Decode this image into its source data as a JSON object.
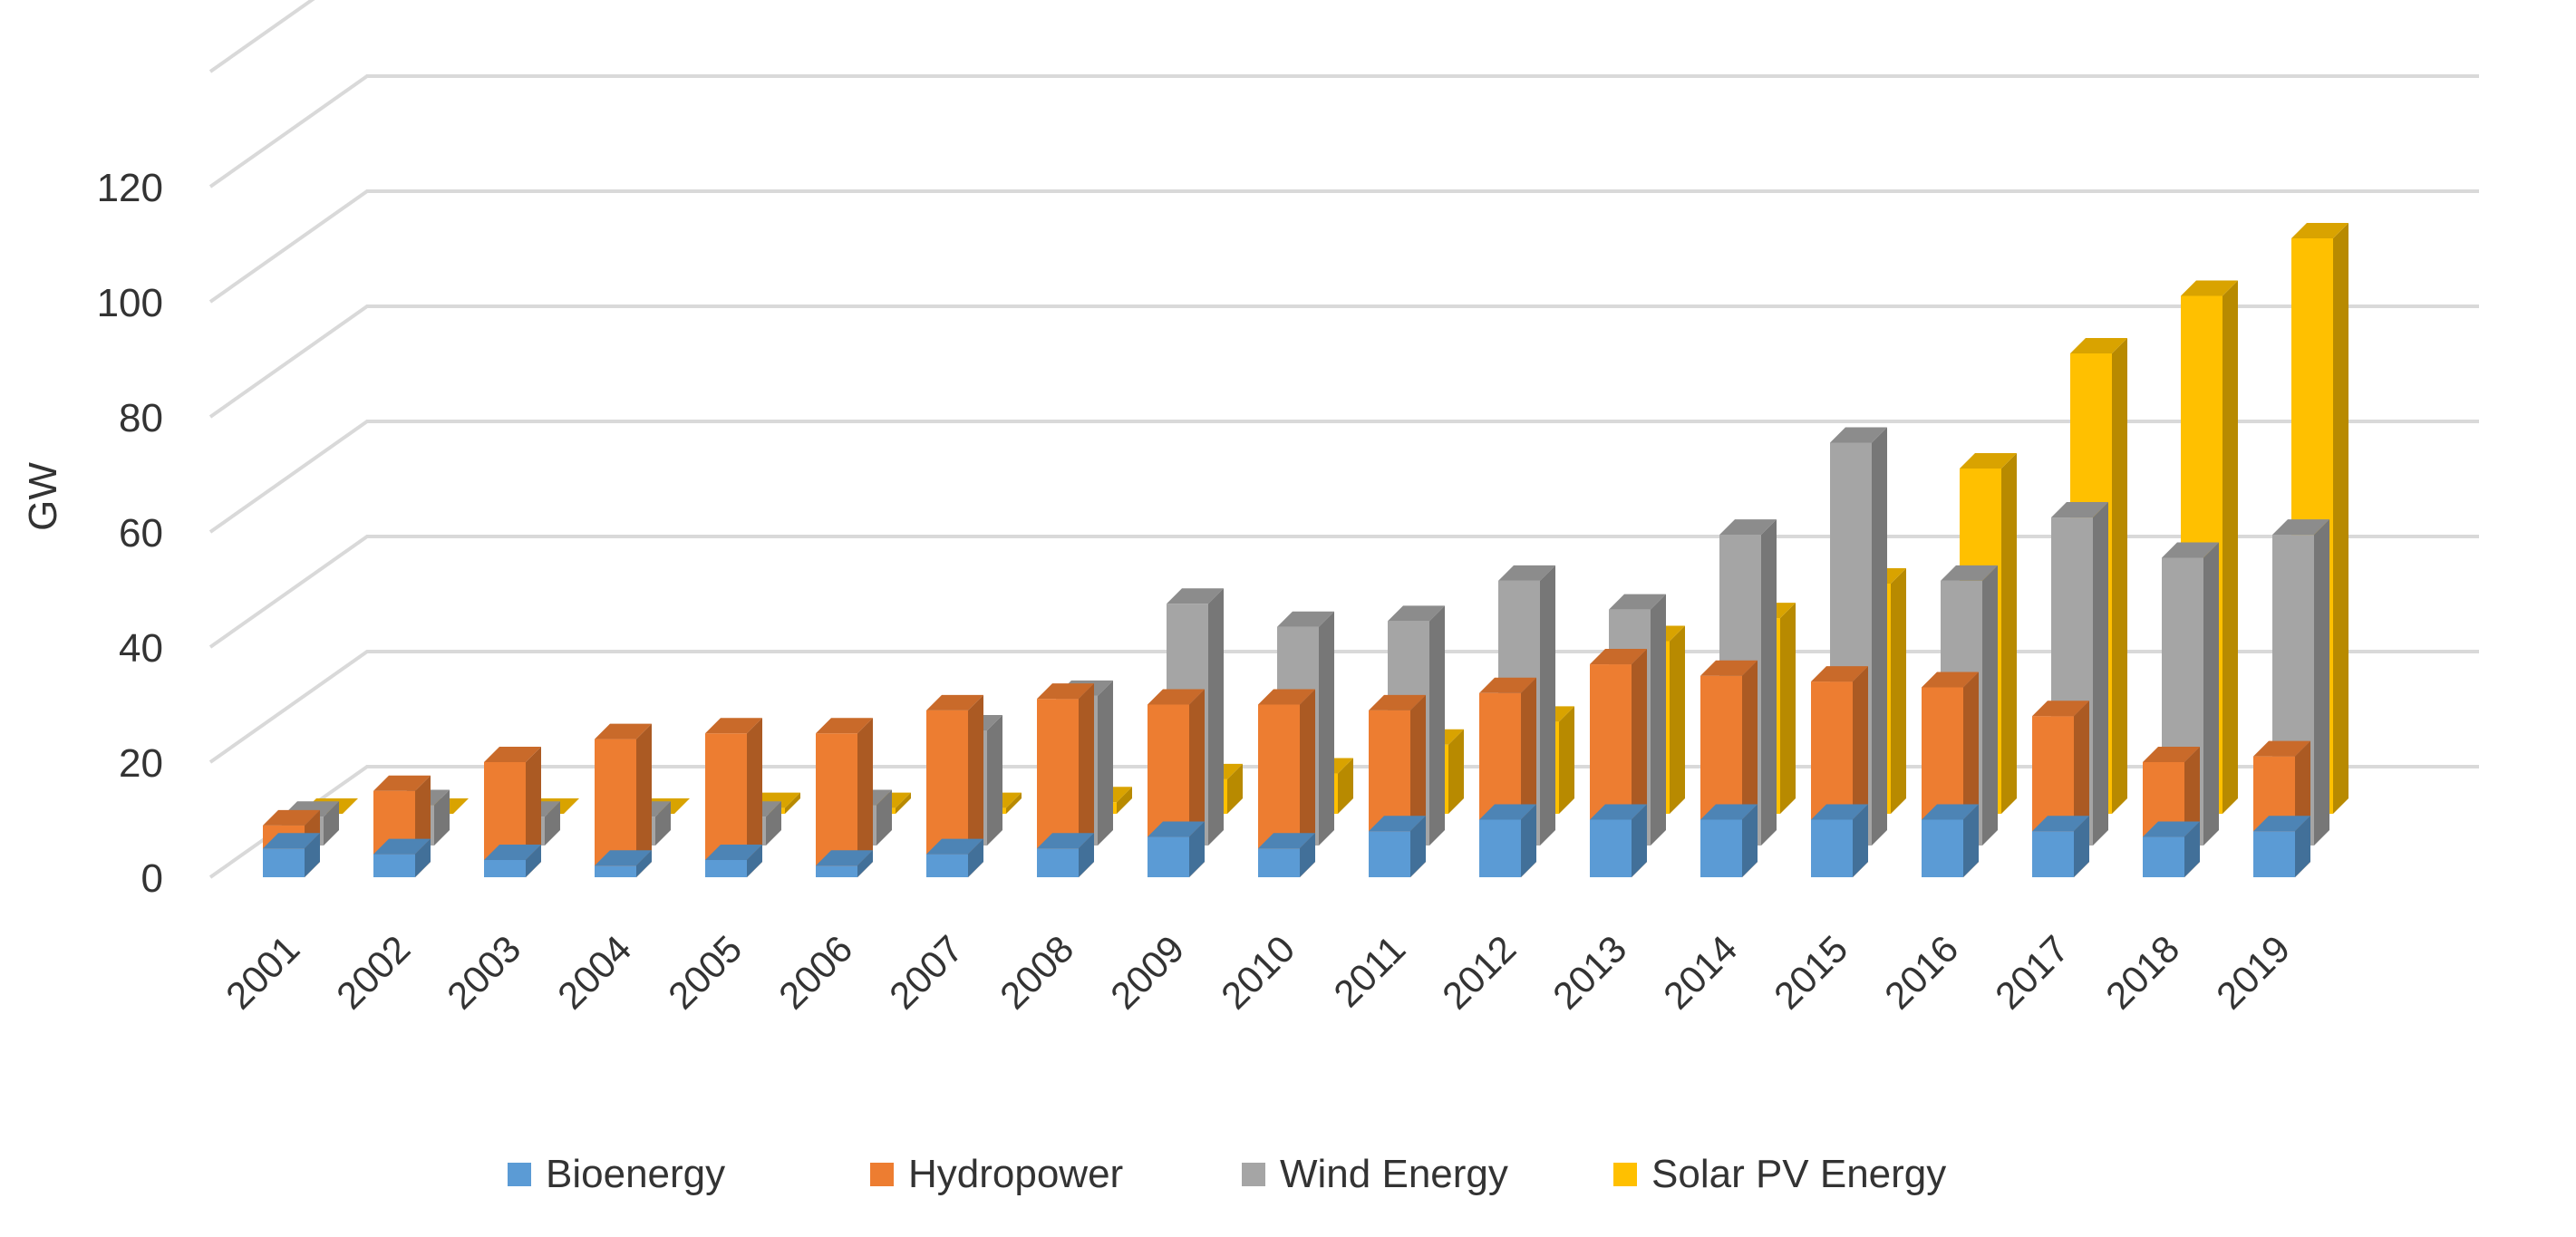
{
  "chart_data": {
    "type": "bar",
    "subtype": "3d-clustered-column",
    "title": "",
    "xlabel": "",
    "ylabel": "GW",
    "ylim": [
      0,
      140
    ],
    "yticks": [
      0,
      20,
      40,
      60,
      80,
      100,
      120
    ],
    "grid": true,
    "legend_position": "bottom",
    "categories": [
      "2001",
      "2002",
      "2003",
      "2004",
      "2005",
      "2006",
      "2007",
      "2008",
      "2009",
      "2010",
      "2011",
      "2012",
      "2013",
      "2014",
      "2015",
      "2016",
      "2017",
      "2018",
      "2019"
    ],
    "series": [
      {
        "name": "Bioenergy",
        "color": "#5B9BD5",
        "values": [
          5,
          4,
          3,
          2,
          3,
          2,
          4,
          5,
          7,
          5,
          8,
          10,
          10,
          10,
          10,
          10,
          8,
          7,
          8
        ]
      },
      {
        "name": "Hydropower",
        "color": "#ED7D31",
        "values": [
          9,
          15,
          20,
          24,
          25,
          25,
          29,
          31,
          30,
          30,
          29,
          32,
          37,
          35,
          34,
          33,
          28,
          20,
          21
        ]
      },
      {
        "name": "Wind Energy",
        "color": "#A5A5A5",
        "values": [
          5,
          7,
          5,
          5,
          5,
          7,
          20,
          26,
          42,
          38,
          39,
          46,
          41,
          54,
          70,
          46,
          57,
          50,
          54
        ]
      },
      {
        "name": "Solar PV Energy",
        "color": "#FFC000",
        "values": [
          0,
          0,
          0,
          0,
          1,
          1,
          1,
          2,
          6,
          7,
          12,
          16,
          30,
          34,
          40,
          60,
          80,
          90,
          100
        ]
      }
    ]
  }
}
